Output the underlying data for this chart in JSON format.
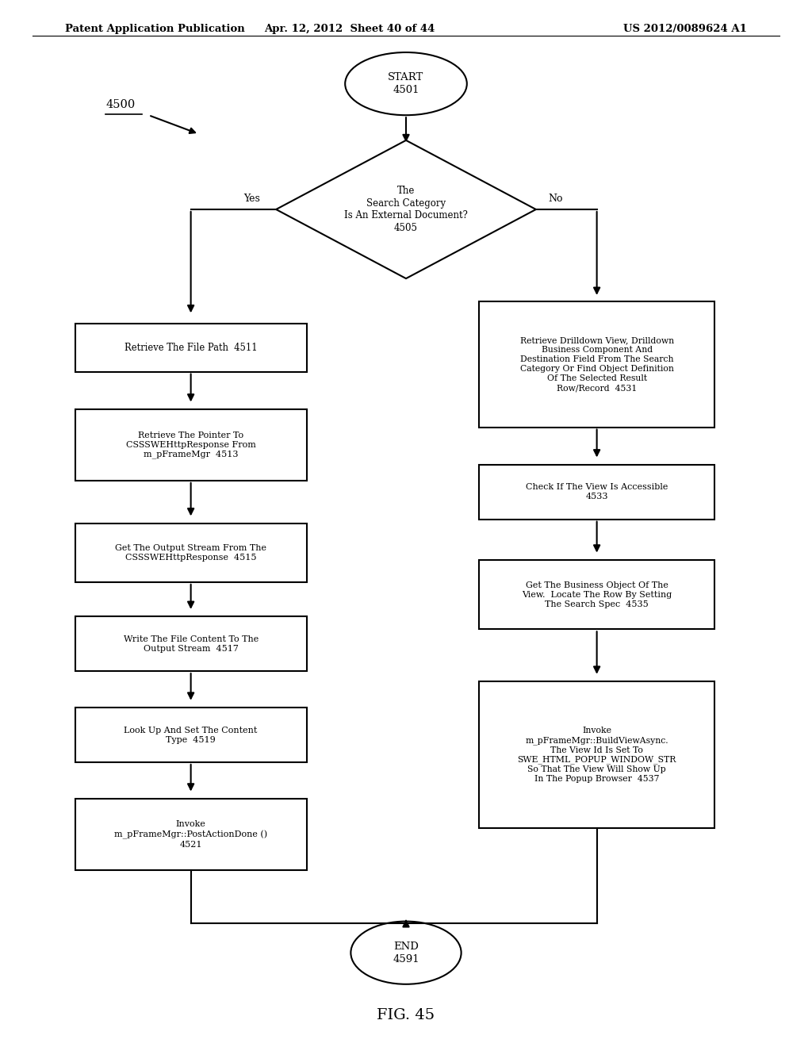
{
  "header_left": "Patent Application Publication",
  "header_mid": "Apr. 12, 2012  Sheet 40 of 44",
  "header_right": "US 2012/0089624 A1",
  "fig_label": "FIG. 45",
  "diagram_label": "4500",
  "background_color": "#ffffff",
  "start_label": "START\n4501",
  "end_label": "END\n4591",
  "diamond_label": "The\nSearch Category\nIs An External Document?\n4505",
  "yes_label": "Yes",
  "no_label": "No",
  "left_boxes": [
    "Retrieve The File Path  4511",
    "Retrieve The Pointer To\nCSSSWEHttpResponse From\nm_pFrameMgr  4513",
    "Get The Output Stream From The\nCSSSWEHttpResponse  4515",
    "Write The File Content To The\nOutput Stream  4517",
    "Look Up And Set The Content\nType  4519",
    "Invoke\nm_pFrameMgr::PostActionDone ()\n4521"
  ],
  "right_boxes": [
    "Retrieve Drilldown View, Drilldown\nBusiness Component And\nDestination Field From The Search\nCategory Or Find Object Definition\nOf The Selected Result\nRow/Record  4531",
    "Check If The View Is Accessible\n4533",
    "Get The Business Object Of The\nView.  Locate The Row By Setting\nThe Search Spec  4535",
    "Invoke\nm_pFrameMgr::BuildViewAsync.\nThe View Id Is Set To\nSWE_HTML_POPUP_WINDOW_STR\nSo That The View Will Show Up\nIn The Popup Browser  4537"
  ]
}
